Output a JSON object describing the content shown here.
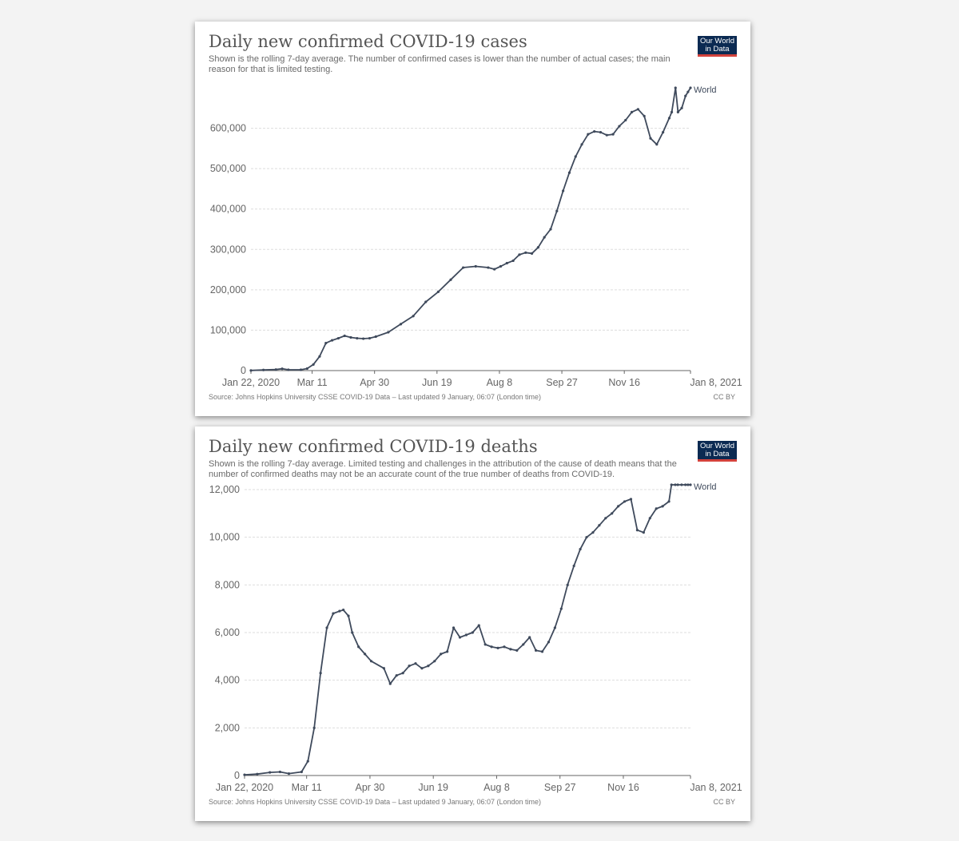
{
  "colors": {
    "line": "#3f4a5c",
    "grid": "#dddddd",
    "axis": "#666666",
    "text": "#666666"
  },
  "charts": [
    {
      "id": "cases",
      "title": "Daily new confirmed COVID-19 cases",
      "subtitle": "Shown is the rolling 7-day average. The number of confirmed cases is lower than the number of actual cases; the main reason for that is limited testing.",
      "logo_line1": "Our World",
      "logo_line2": "in Data",
      "source": "Source: Johns Hopkins University CSSE COVID-19 Data – Last updated 9 January, 06:07 (London time)",
      "license": "CC BY",
      "series_label": "World"
    },
    {
      "id": "deaths",
      "title": "Daily new confirmed COVID-19 deaths",
      "subtitle": "Shown is the rolling 7-day average. Limited testing and challenges in the attribution of the cause of death means that the number of confirmed deaths may not be an accurate count of the true number of deaths from COVID-19.",
      "logo_line1": "Our World",
      "logo_line2": "in Data",
      "source": "Source: Johns Hopkins University CSSE COVID-19 Data – Last updated 9 January, 06:07 (London time)",
      "license": "CC BY",
      "series_label": "World"
    }
  ],
  "chart_data": [
    {
      "type": "line",
      "title": "Daily new confirmed COVID-19 cases",
      "xlabel": "",
      "ylabel": "",
      "x_range_days": [
        0,
        352
      ],
      "x_ticks": [
        {
          "day": 0,
          "label": "Jan 22, 2020"
        },
        {
          "day": 49,
          "label": "Mar 11"
        },
        {
          "day": 99,
          "label": "Apr 30"
        },
        {
          "day": 149,
          "label": "Jun 19"
        },
        {
          "day": 199,
          "label": "Aug 8"
        },
        {
          "day": 249,
          "label": "Sep 27"
        },
        {
          "day": 299,
          "label": "Nov 16"
        },
        {
          "day": 352,
          "label": "Jan 8, 2021"
        }
      ],
      "ylim": [
        0,
        700000
      ],
      "y_ticks": [
        0,
        100000,
        200000,
        300000,
        400000,
        500000,
        600000
      ],
      "y_tick_labels": [
        "0",
        "100,000",
        "200,000",
        "300,000",
        "400,000",
        "500,000",
        "600,000"
      ],
      "series": [
        {
          "name": "World",
          "x": [
            0,
            10,
            20,
            25,
            30,
            40,
            45,
            50,
            55,
            60,
            65,
            70,
            75,
            80,
            85,
            90,
            95,
            100,
            110,
            120,
            130,
            140,
            150,
            160,
            170,
            180,
            190,
            195,
            200,
            205,
            210,
            215,
            220,
            225,
            230,
            235,
            240,
            245,
            250,
            255,
            260,
            265,
            270,
            275,
            280,
            285,
            290,
            295,
            300,
            305,
            310,
            315,
            320,
            325,
            330,
            335,
            337,
            340,
            342,
            345,
            348,
            350,
            352
          ],
          "values": [
            300,
            1500,
            2500,
            4500,
            2000,
            2000,
            5000,
            15000,
            35000,
            68000,
            75000,
            80000,
            86000,
            82000,
            80000,
            79000,
            80000,
            84000,
            95000,
            115000,
            135000,
            170000,
            195000,
            225000,
            255000,
            258000,
            255000,
            251000,
            258000,
            266000,
            272000,
            287000,
            292000,
            290000,
            305000,
            330000,
            350000,
            395000,
            445000,
            490000,
            530000,
            560000,
            585000,
            592000,
            590000,
            583000,
            585000,
            605000,
            620000,
            640000,
            647000,
            630000,
            575000,
            560000,
            590000,
            625000,
            640000,
            700000,
            640000,
            650000,
            680000,
            690000,
            700000
          ]
        }
      ]
    },
    {
      "type": "line",
      "title": "Daily new confirmed COVID-19 deaths",
      "xlabel": "",
      "ylabel": "",
      "x_range_days": [
        0,
        352
      ],
      "x_ticks": [
        {
          "day": 0,
          "label": "Jan 22, 2020"
        },
        {
          "day": 49,
          "label": "Mar 11"
        },
        {
          "day": 99,
          "label": "Apr 30"
        },
        {
          "day": 149,
          "label": "Jun 19"
        },
        {
          "day": 199,
          "label": "Aug 8"
        },
        {
          "day": 249,
          "label": "Sep 27"
        },
        {
          "day": 299,
          "label": "Nov 16"
        },
        {
          "day": 352,
          "label": "Jan 8, 2021"
        }
      ],
      "ylim": [
        0,
        12000
      ],
      "y_ticks": [
        0,
        2000,
        4000,
        6000,
        8000,
        10000,
        12000
      ],
      "y_tick_labels": [
        "0",
        "2,000",
        "4,000",
        "6,000",
        "8,000",
        "10,000",
        "12,000"
      ],
      "series": [
        {
          "name": "World",
          "x": [
            0,
            10,
            20,
            28,
            35,
            45,
            50,
            55,
            60,
            65,
            70,
            75,
            78,
            82,
            85,
            90,
            95,
            100,
            110,
            115,
            120,
            125,
            130,
            135,
            140,
            145,
            150,
            155,
            160,
            165,
            170,
            175,
            180,
            185,
            190,
            195,
            200,
            205,
            210,
            215,
            220,
            225,
            230,
            235,
            240,
            245,
            250,
            255,
            260,
            265,
            270,
            275,
            280,
            285,
            290,
            295,
            300,
            305,
            310,
            315,
            320,
            325,
            330,
            335,
            337,
            340,
            342,
            345,
            348,
            350,
            352
          ],
          "values": [
            30,
            60,
            130,
            150,
            80,
            150,
            600,
            2000,
            4300,
            6200,
            6800,
            6900,
            6950,
            6700,
            6000,
            5400,
            5100,
            4800,
            4500,
            3850,
            4200,
            4300,
            4600,
            4700,
            4500,
            4600,
            4800,
            5100,
            5200,
            6200,
            5800,
            5900,
            6000,
            6300,
            5500,
            5400,
            5350,
            5400,
            5300,
            5250,
            5500,
            5800,
            5250,
            5200,
            5600,
            6200,
            7000,
            8000,
            8800,
            9500,
            10000,
            10200,
            10500,
            10800,
            11000,
            11300,
            11500,
            11600,
            10300,
            10200,
            10800,
            11200,
            11300,
            11500,
            12200,
            12200,
            12200,
            12200,
            12200,
            12200,
            12200
          ]
        }
      ]
    }
  ]
}
